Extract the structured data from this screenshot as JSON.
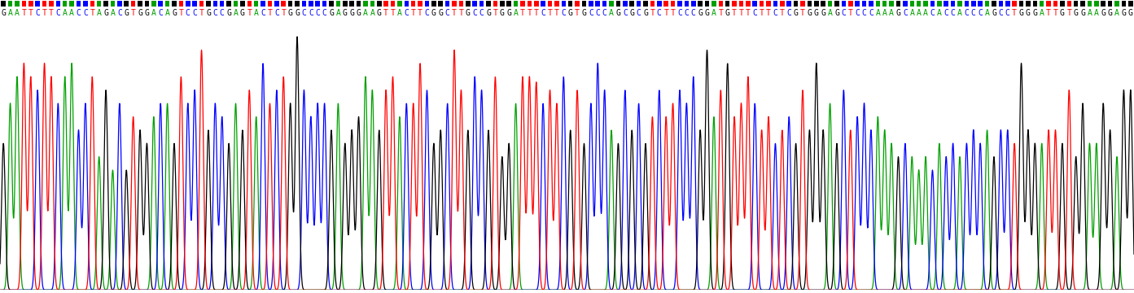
{
  "chart_data": {
    "type": "chromatogram",
    "categories": [
      "G",
      "A",
      "A",
      "T",
      "T",
      "C",
      "T",
      "T",
      "C",
      "A",
      "A",
      "C",
      "C",
      "T",
      "A",
      "G",
      "A",
      "C",
      "G",
      "T",
      "G",
      "G",
      "A",
      "C",
      "A",
      "G",
      "T",
      "C",
      "C",
      "T",
      "G",
      "C",
      "C",
      "G",
      "A",
      "G",
      "T",
      "A",
      "C",
      "T",
      "C",
      "T",
      "G",
      "G",
      "C",
      "C",
      "C",
      "C",
      "G",
      "A",
      "G",
      "G",
      "G",
      "A",
      "A",
      "G",
      "T",
      "T",
      "A",
      "C",
      "T",
      "T",
      "C",
      "G",
      "G",
      "C",
      "T",
      "T",
      "G",
      "C",
      "C",
      "G",
      "T",
      "G",
      "G",
      "A",
      "T",
      "T",
      "T",
      "C",
      "T",
      "T",
      "C",
      "G",
      "T",
      "G",
      "C",
      "C",
      "C",
      "A",
      "G",
      "C",
      "G",
      "C",
      "G",
      "T",
      "C",
      "T",
      "T",
      "C",
      "C",
      "C",
      "G",
      "G",
      "A",
      "T",
      "G",
      "T",
      "T",
      "T",
      "C",
      "T",
      "T",
      "C",
      "T",
      "C",
      "G",
      "T",
      "G",
      "G",
      "G",
      "A",
      "G",
      "C",
      "T",
      "C",
      "C",
      "C",
      "A",
      "A",
      "A",
      "G",
      "C",
      "A",
      "A",
      "A",
      "C",
      "A",
      "C",
      "C",
      "A",
      "C",
      "C",
      "C",
      "A",
      "G",
      "C",
      "C",
      "T",
      "G",
      "G",
      "G",
      "A",
      "T",
      "T",
      "G",
      "T",
      "G",
      "G",
      "A",
      "A",
      "G",
      "G",
      "A",
      "G",
      "G"
    ],
    "values": [
      55,
      70,
      80,
      85,
      80,
      75,
      85,
      80,
      70,
      80,
      85,
      60,
      70,
      80,
      50,
      75,
      45,
      70,
      45,
      65,
      60,
      55,
      65,
      70,
      70,
      55,
      80,
      70,
      75,
      90,
      60,
      70,
      65,
      55,
      70,
      60,
      75,
      65,
      85,
      70,
      75,
      80,
      70,
      95,
      75,
      65,
      70,
      70,
      60,
      70,
      55,
      60,
      65,
      80,
      75,
      60,
      75,
      80,
      65,
      70,
      70,
      85,
      75,
      55,
      60,
      70,
      90,
      75,
      60,
      80,
      75,
      60,
      80,
      50,
      55,
      70,
      80,
      80,
      78,
      70,
      75,
      70,
      80,
      60,
      75,
      55,
      70,
      85,
      75,
      60,
      55,
      75,
      60,
      70,
      55,
      65,
      75,
      65,
      70,
      75,
      70,
      80,
      60,
      90,
      65,
      75,
      85,
      65,
      70,
      80,
      70,
      60,
      65,
      55,
      60,
      65,
      55,
      75,
      60,
      85,
      60,
      70,
      55,
      75,
      60,
      65,
      70,
      60,
      65,
      60,
      55,
      50,
      55,
      50,
      45,
      50,
      45,
      55,
      50,
      55,
      50,
      55,
      60,
      55,
      60,
      50,
      60,
      60,
      55,
      85,
      60,
      55,
      55,
      60,
      60,
      55,
      75,
      50,
      70,
      55,
      55,
      70,
      60,
      50,
      75,
      75
    ],
    "base_colors": {
      "A": "#00a000",
      "C": "#0000ff",
      "G": "#000000",
      "T": "#ff0000"
    },
    "ylim": [
      0,
      100
    ],
    "tick_labels": false
  }
}
